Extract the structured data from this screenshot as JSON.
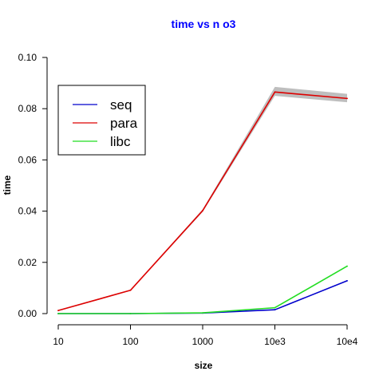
{
  "chart_data": {
    "type": "line",
    "title": "time vs n o3",
    "xlabel": "size",
    "ylabel": "time",
    "x_tick_labels": [
      "10",
      "100",
      "1000",
      "10e3",
      "10e4"
    ],
    "ylim": [
      0,
      0.1
    ],
    "y_ticks": [
      0,
      0.02,
      0.04,
      0.06,
      0.08,
      0.1
    ],
    "y_tick_labels": [
      "0.00",
      "0.02",
      "0.04",
      "0.06",
      "0.08",
      "0.10"
    ],
    "legend_position": "top-left",
    "grid": false,
    "colors": {
      "title": "#0000ff",
      "band": "#bebebe",
      "axis": "#000000"
    },
    "series": [
      {
        "name": "seq",
        "color": "#0000cc",
        "values": [
          0.0,
          0.0,
          0.0002,
          0.0015,
          0.0128
        ]
      },
      {
        "name": "para",
        "color": "#dd0000",
        "values": [
          0.0012,
          0.0091,
          0.0402,
          0.0865,
          0.084
        ],
        "band_lower": [
          0.001,
          0.0089,
          0.0397,
          0.085,
          0.0825
        ],
        "band_upper": [
          0.0014,
          0.0093,
          0.0407,
          0.0885,
          0.0858
        ]
      },
      {
        "name": "libc",
        "color": "#22dd22",
        "values": [
          0.0,
          0.0,
          0.0003,
          0.0023,
          0.0185
        ]
      }
    ]
  }
}
